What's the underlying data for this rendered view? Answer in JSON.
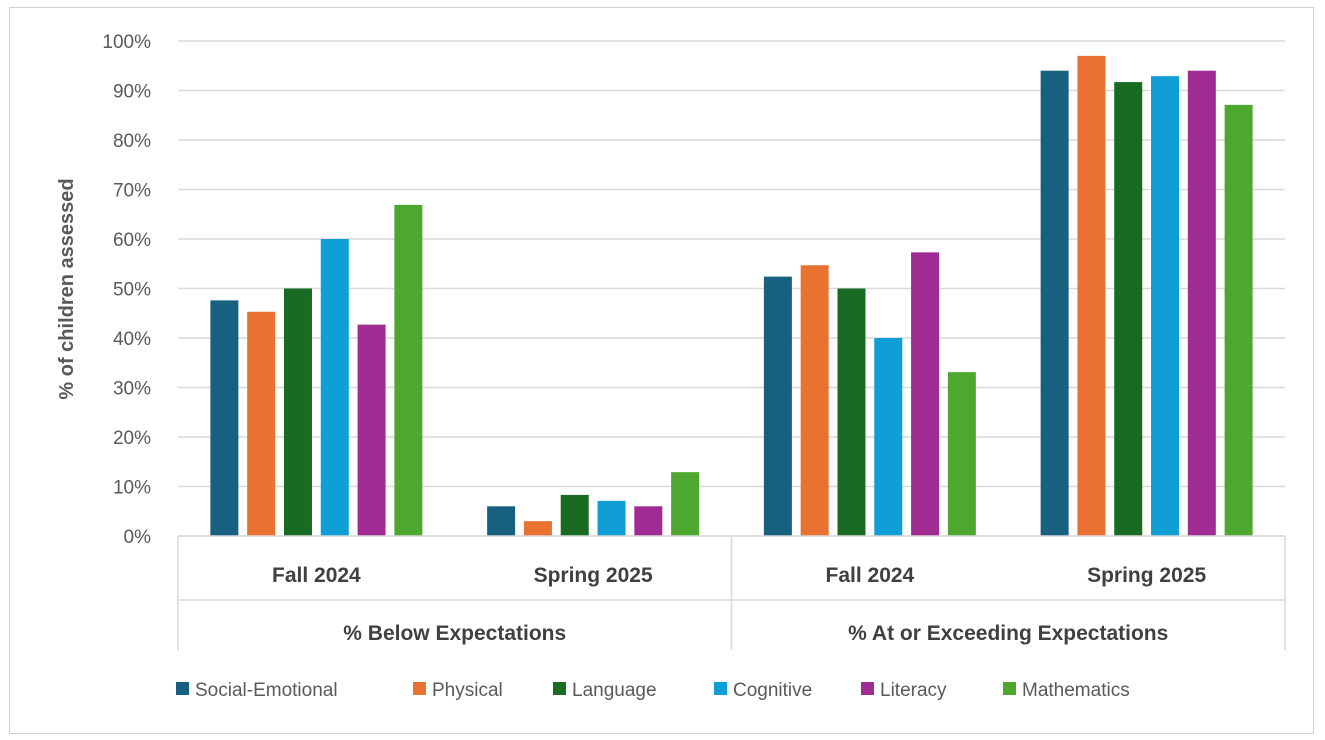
{
  "chart_data": {
    "type": "bar",
    "ylabel": "% of children assessed",
    "ylim": [
      0,
      100
    ],
    "yticks": [
      "0%",
      "10%",
      "20%",
      "30%",
      "40%",
      "50%",
      "60%",
      "70%",
      "80%",
      "90%",
      "100%"
    ],
    "grid": true,
    "legend_position": "bottom",
    "groups": [
      {
        "label": "% Below Expectations",
        "categories": [
          "Fall 2024",
          "Spring 2025"
        ]
      },
      {
        "label": "% At or Exceeding Expectations",
        "categories": [
          "Fall 2024",
          "Spring 2025"
        ]
      }
    ],
    "categories": [
      "Fall 2024",
      "Spring 2025",
      "Fall 2024",
      "Spring 2025"
    ],
    "series": [
      {
        "name": "Social-Emotional",
        "color": "#17607F",
        "values": [
          47.6,
          6,
          52.4,
          94
        ]
      },
      {
        "name": "Physical",
        "color": "#E97132",
        "values": [
          45.3,
          3,
          54.7,
          97
        ]
      },
      {
        "name": "Language",
        "color": "#196B24",
        "values": [
          50,
          8.3,
          50,
          91.7
        ]
      },
      {
        "name": "Cognitive",
        "color": "#0F9ED5",
        "values": [
          60,
          7.1,
          40,
          92.9
        ]
      },
      {
        "name": "Literacy",
        "color": "#A02B93",
        "values": [
          42.7,
          6,
          57.3,
          94
        ]
      },
      {
        "name": "Mathematics",
        "color": "#4EA72E",
        "values": [
          66.9,
          12.9,
          33.1,
          87.1
        ]
      }
    ]
  }
}
